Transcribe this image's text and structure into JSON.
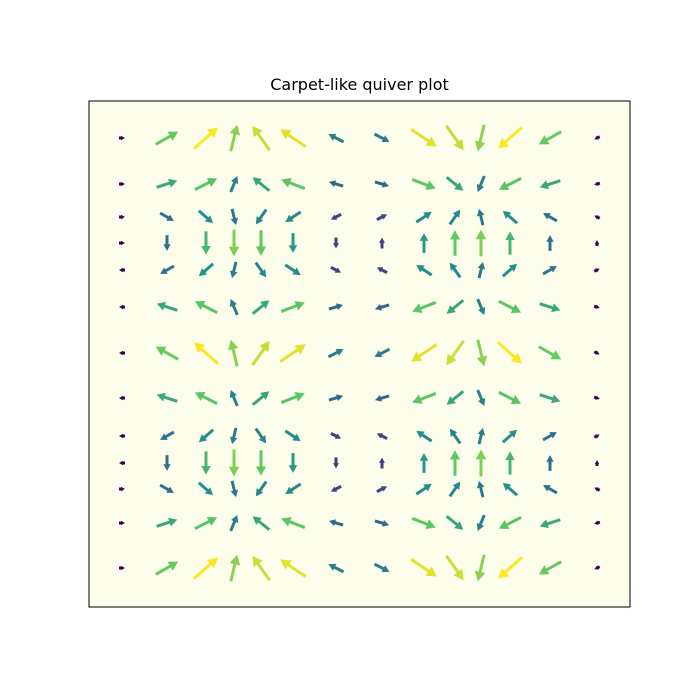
{
  "chart_data": {
    "type": "quiver",
    "title": "Carpet-like quiver plot",
    "xlabel": "",
    "ylabel": "",
    "grid": false,
    "axes_visible": false,
    "background_color": "#fdfdec",
    "colormap": "viridis",
    "grid_size": 14,
    "vector_field": "dx = sin(2*pi*x) * magnitude-like pattern; dy = cos(2*pi*y) style carpet",
    "x": [
      0,
      1,
      2,
      3,
      4,
      5,
      6,
      7,
      8,
      9,
      10,
      11,
      12,
      13
    ],
    "y": [
      0,
      1,
      2,
      3,
      4,
      5,
      6,
      7,
      8,
      9,
      10,
      11,
      12,
      13
    ]
  }
}
